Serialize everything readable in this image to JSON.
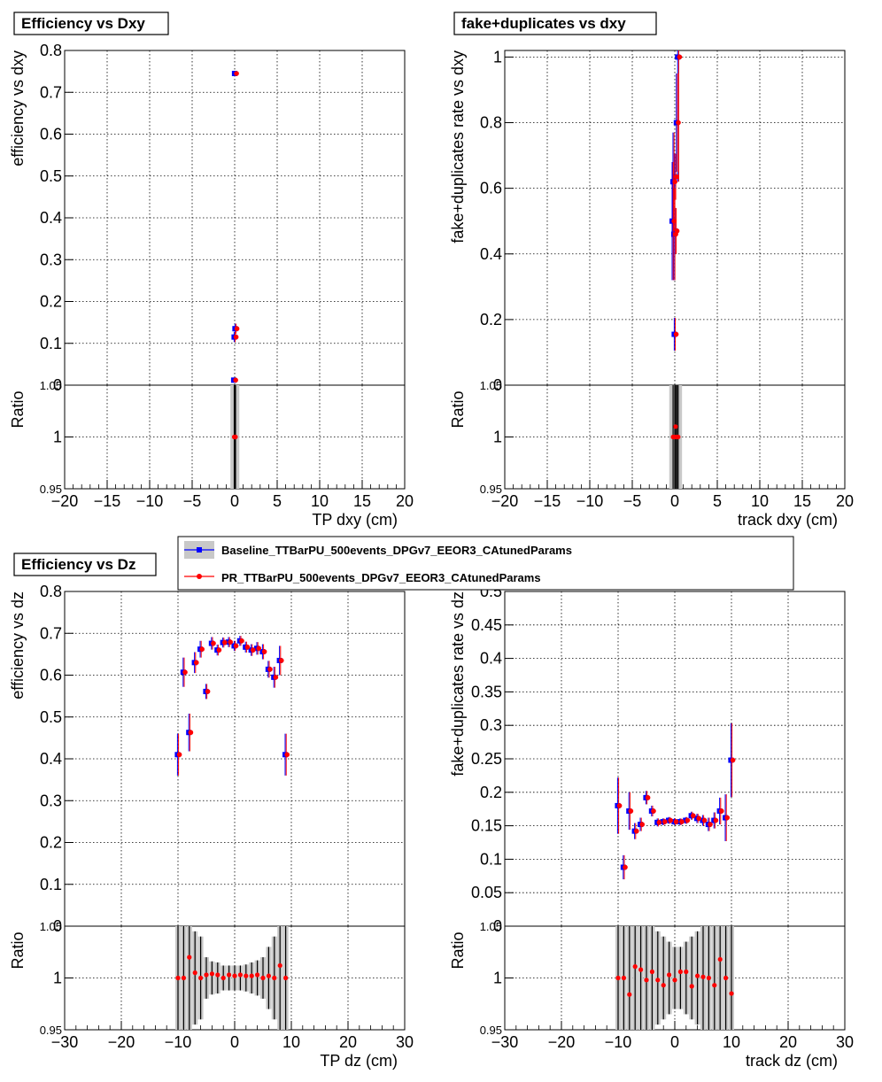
{
  "colors": {
    "baseline": "#0000ff",
    "pr": "#ff0000",
    "band": "#c8c8c8",
    "grid": "#000000"
  },
  "legend": {
    "entries": [
      {
        "name": "Baseline_TTBarPU_500events_DPGv7_EEOR3_CAtunedParams",
        "color": "#0000ff",
        "marker": "square"
      },
      {
        "name": "PR_TTBarPU_500events_DPGv7_EEOR3_CAtunedParams",
        "color": "#ff0000",
        "marker": "circle"
      }
    ]
  },
  "chart_data": [
    {
      "type": "scatter",
      "title": "Efficiency vs Dxy",
      "xlabel": "TP dxy (cm)",
      "ylabel": "efficiency vs dxy",
      "ratio_ylabel": "Ratio",
      "xlim": [
        -20,
        20
      ],
      "ylim": [
        0,
        0.8
      ],
      "ratio_ylim": [
        0.95,
        1.05
      ],
      "xticks": [
        -20,
        -15,
        -10,
        -5,
        0,
        5,
        10,
        15,
        20
      ],
      "yticks": [
        0,
        0.1,
        0.2,
        0.3,
        0.4,
        0.5,
        0.6,
        0.7,
        0.8
      ],
      "ratio_yticks": [
        0.95,
        1,
        1.05
      ],
      "grid": true,
      "series": [
        {
          "name": "Baseline_TTBarPU_500events_DPGv7_EEOR3_CAtunedParams",
          "x": [
            -0.05,
            0.0,
            0.05,
            0.1
          ],
          "y": [
            0.012,
            0.115,
            0.745,
            0.135
          ],
          "err": [
            0.003,
            0.012,
            0.004,
            0.012
          ]
        },
        {
          "name": "PR_TTBarPU_500events_DPGv7_EEOR3_CAtunedParams",
          "x": [
            -0.05,
            0.0,
            0.05,
            0.1
          ],
          "y": [
            0.012,
            0.115,
            0.745,
            0.135
          ],
          "err": [
            0.003,
            0.012,
            0.004,
            0.012
          ]
        }
      ],
      "ratio": {
        "x": [
          -0.05,
          0.0,
          0.05,
          0.1
        ],
        "y": [
          1,
          1,
          1,
          1
        ],
        "band_err": [
          0.06,
          0.06,
          0.06,
          0.06
        ],
        "err": [
          0.06,
          0.06,
          0.06,
          0.06
        ]
      }
    },
    {
      "type": "scatter",
      "title": "fake+duplicates vs dxy",
      "xlabel": "track dxy (cm)",
      "ylabel": "fake+duplicates rate vs dxy",
      "ratio_ylabel": "Ratio",
      "xlim": [
        -20,
        20
      ],
      "ylim": [
        0,
        1.02
      ],
      "ratio_ylim": [
        0.95,
        1.05
      ],
      "xticks": [
        -20,
        -15,
        -10,
        -5,
        0,
        5,
        10,
        15,
        20
      ],
      "yticks": [
        0,
        0.2,
        0.4,
        0.6,
        0.8,
        1
      ],
      "ratio_yticks": [
        0.95,
        1,
        1.05
      ],
      "grid": true,
      "series": [
        {
          "name": "Baseline_TTBarPU_500events_DPGv7_EEOR3_CAtunedParams",
          "x": [
            -0.25,
            -0.15,
            -0.05,
            0.0,
            0.05,
            0.1,
            0.25,
            0.4
          ],
          "y": [
            0.5,
            0.62,
            0.46,
            0.155,
            0.635,
            0.47,
            0.8,
            1.0
          ],
          "err": [
            0.18,
            0.15,
            0.14,
            0.05,
            0.07,
            0.07,
            0.15,
            0.38
          ]
        },
        {
          "name": "PR_TTBarPU_500events_DPGv7_EEOR3_CAtunedParams",
          "x": [
            -0.25,
            -0.15,
            -0.05,
            0.0,
            0.05,
            0.1,
            0.25,
            0.4
          ],
          "y": [
            0.5,
            0.62,
            0.46,
            0.155,
            0.635,
            0.47,
            0.8,
            1.0
          ],
          "err": [
            0.18,
            0.15,
            0.14,
            0.05,
            0.07,
            0.07,
            0.15,
            0.38
          ]
        }
      ],
      "ratio": {
        "x": [
          -0.2,
          0.0,
          0.1,
          0.25,
          0.4
        ],
        "y": [
          1,
          1,
          1.01,
          1,
          1
        ],
        "band_err": [
          0.06,
          0.06,
          0.06,
          0.06,
          0.06
        ],
        "err": [
          0.06,
          0.06,
          0.06,
          0.06,
          0.06
        ]
      }
    },
    {
      "type": "scatter",
      "title": "Efficiency vs Dz",
      "xlabel": "TP dz (cm)",
      "ylabel": "efficiency vs dz",
      "ratio_ylabel": "Ratio",
      "xlim": [
        -30,
        30
      ],
      "ylim": [
        0,
        0.8
      ],
      "ratio_ylim": [
        0.95,
        1.05
      ],
      "xticks": [
        -30,
        -20,
        -10,
        0,
        10,
        20,
        30
      ],
      "yticks": [
        0,
        0.1,
        0.2,
        0.3,
        0.4,
        0.5,
        0.6,
        0.7,
        0.8
      ],
      "ratio_yticks": [
        0.95,
        1,
        1.05
      ],
      "grid": true,
      "series": [
        {
          "name": "Baseline_TTBarPU_500events_DPGv7_EEOR3_CAtunedParams",
          "x": [
            -10,
            -9,
            -8,
            -7,
            -6,
            -5,
            -4,
            -3,
            -2,
            -1,
            0,
            1,
            2,
            3,
            4,
            5,
            6,
            7,
            8,
            9
          ],
          "y": [
            0.41,
            0.607,
            0.463,
            0.63,
            0.662,
            0.561,
            0.676,
            0.66,
            0.678,
            0.679,
            0.67,
            0.682,
            0.667,
            0.66,
            0.664,
            0.656,
            0.614,
            0.595,
            0.635,
            0.41
          ],
          "err": [
            0.05,
            0.035,
            0.045,
            0.025,
            0.02,
            0.018,
            0.015,
            0.013,
            0.012,
            0.012,
            0.012,
            0.012,
            0.013,
            0.014,
            0.015,
            0.018,
            0.02,
            0.025,
            0.035,
            0.05
          ]
        },
        {
          "name": "PR_TTBarPU_500events_DPGv7_EEOR3_CAtunedParams",
          "x": [
            -10,
            -9,
            -8,
            -7,
            -6,
            -5,
            -4,
            -3,
            -2,
            -1,
            0,
            1,
            2,
            3,
            4,
            5,
            6,
            7,
            8,
            9
          ],
          "y": [
            0.41,
            0.607,
            0.463,
            0.63,
            0.662,
            0.561,
            0.676,
            0.66,
            0.678,
            0.679,
            0.67,
            0.682,
            0.667,
            0.66,
            0.664,
            0.656,
            0.614,
            0.595,
            0.635,
            0.41
          ],
          "err": [
            0.05,
            0.035,
            0.045,
            0.025,
            0.02,
            0.018,
            0.015,
            0.013,
            0.012,
            0.012,
            0.012,
            0.012,
            0.013,
            0.014,
            0.015,
            0.018,
            0.02,
            0.025,
            0.035,
            0.05
          ]
        }
      ],
      "ratio": {
        "x": [
          -10,
          -9,
          -8,
          -7,
          -6,
          -5,
          -4,
          -3,
          -2,
          -1,
          0,
          1,
          2,
          3,
          4,
          5,
          6,
          7,
          8,
          9
        ],
        "y": [
          1,
          1,
          1.02,
          1.005,
          1.0,
          1.003,
          1.004,
          1.003,
          1.0,
          1.003,
          1.002,
          1.003,
          1.002,
          1.002,
          1.003,
          1.0,
          1.002,
          1.0,
          1.012,
          1.0
        ],
        "band_err": [
          0.06,
          0.06,
          0.06,
          0.045,
          0.04,
          0.02,
          0.016,
          0.015,
          0.012,
          0.012,
          0.012,
          0.012,
          0.013,
          0.015,
          0.017,
          0.02,
          0.03,
          0.04,
          0.06,
          0.06
        ],
        "err": [
          0.06,
          0.06,
          0.06,
          0.045,
          0.04,
          0.02,
          0.016,
          0.015,
          0.012,
          0.012,
          0.012,
          0.012,
          0.013,
          0.015,
          0.017,
          0.02,
          0.03,
          0.04,
          0.06,
          0.06
        ]
      }
    },
    {
      "type": "scatter",
      "title": "",
      "xlabel": "track dz (cm)",
      "ylabel": "fake+duplicates rate vs dz",
      "ratio_ylabel": "Ratio",
      "xlim": [
        -30,
        30
      ],
      "ylim": [
        0,
        0.5
      ],
      "ratio_ylim": [
        0.95,
        1.05
      ],
      "xticks": [
        -30,
        -20,
        -10,
        0,
        10,
        20,
        30
      ],
      "yticks": [
        0,
        0.05,
        0.1,
        0.15,
        0.2,
        0.25,
        0.3,
        0.35,
        0.4,
        0.45,
        0.5
      ],
      "ratio_yticks": [
        0.95,
        1,
        1.05
      ],
      "grid": true,
      "series": [
        {
          "name": "Baseline_TTBarPU_500events_DPGv7_EEOR3_CAtunedParams",
          "x": [
            -10,
            -9,
            -8,
            -7,
            -6,
            -5,
            -4,
            -3,
            -2,
            -1,
            0,
            1,
            2,
            3,
            4,
            5,
            6,
            7,
            8,
            9,
            10
          ],
          "y": [
            0.18,
            0.088,
            0.172,
            0.142,
            0.152,
            0.192,
            0.172,
            0.155,
            0.156,
            0.158,
            0.156,
            0.156,
            0.158,
            0.165,
            0.161,
            0.158,
            0.152,
            0.158,
            0.172,
            0.162,
            0.248
          ],
          "err": [
            0.042,
            0.018,
            0.028,
            0.012,
            0.01,
            0.01,
            0.008,
            0.006,
            0.005,
            0.005,
            0.005,
            0.005,
            0.005,
            0.006,
            0.007,
            0.008,
            0.01,
            0.012,
            0.02,
            0.035,
            0.055
          ]
        },
        {
          "name": "PR_TTBarPU_500events_DPGv7_EEOR3_CAtunedParams",
          "x": [
            -10,
            -9,
            -8,
            -7,
            -6,
            -5,
            -4,
            -3,
            -2,
            -1,
            0,
            1,
            2,
            3,
            4,
            5,
            6,
            7,
            8,
            9,
            10
          ],
          "y": [
            0.18,
            0.088,
            0.172,
            0.142,
            0.152,
            0.192,
            0.172,
            0.155,
            0.156,
            0.158,
            0.156,
            0.156,
            0.158,
            0.165,
            0.161,
            0.158,
            0.152,
            0.158,
            0.172,
            0.162,
            0.248
          ],
          "err": [
            0.042,
            0.018,
            0.028,
            0.012,
            0.01,
            0.01,
            0.008,
            0.006,
            0.005,
            0.005,
            0.005,
            0.005,
            0.005,
            0.006,
            0.007,
            0.008,
            0.01,
            0.012,
            0.02,
            0.035,
            0.055
          ]
        }
      ],
      "ratio": {
        "x": [
          -10,
          -9,
          -8,
          -7,
          -6,
          -5,
          -4,
          -3,
          -2,
          -1,
          0,
          1,
          2,
          3,
          4,
          5,
          6,
          7,
          8,
          9,
          10
        ],
        "y": [
          1,
          1,
          0.984,
          1.011,
          1.008,
          0.998,
          1.006,
          0.998,
          0.993,
          1.003,
          0.998,
          1.006,
          1.006,
          0.992,
          1.002,
          1.001,
          1.0,
          0.993,
          1.018,
          1.0,
          0.985
        ],
        "band_err": [
          0.06,
          0.06,
          0.06,
          0.06,
          0.06,
          0.06,
          0.05,
          0.045,
          0.04,
          0.035,
          0.03,
          0.03,
          0.035,
          0.04,
          0.045,
          0.05,
          0.06,
          0.06,
          0.06,
          0.06,
          0.06
        ],
        "err": [
          0.06,
          0.06,
          0.06,
          0.06,
          0.06,
          0.06,
          0.05,
          0.045,
          0.04,
          0.035,
          0.03,
          0.03,
          0.035,
          0.04,
          0.045,
          0.05,
          0.06,
          0.06,
          0.06,
          0.06,
          0.06
        ]
      }
    }
  ]
}
